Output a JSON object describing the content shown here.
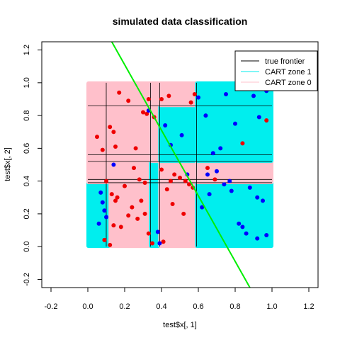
{
  "chart_data": {
    "type": "scatter",
    "title": "simulated data classification",
    "xlabel": "test$x[, 1]",
    "ylabel": "test$x[, 2]",
    "xlim": [
      -0.25,
      1.25
    ],
    "ylim": [
      -0.25,
      1.25
    ],
    "xticks": [
      "-0.2",
      "0.0",
      "0.2",
      "0.4",
      "0.6",
      "0.8",
      "1.0",
      "1.2"
    ],
    "yticks": [
      "-0.2",
      "0.0",
      "0.2",
      "0.4",
      "0.6",
      "0.8",
      "1.0",
      "1.2"
    ],
    "grid": false,
    "legend": {
      "position": "top-right",
      "entries": [
        {
          "label": "true frontier",
          "color": "#000000"
        },
        {
          "label": "CART zone 1",
          "color": "#00eeee"
        },
        {
          "label": "CART zone 0",
          "color": "#ffc0cb"
        }
      ]
    },
    "colors": {
      "zone1": "#00eeee",
      "zone0": "#ffc0cb",
      "class1_points": "#0000ff",
      "class0_points": "#ee0000",
      "frontier": "#00ee00",
      "split_lines": "#000000"
    },
    "zones": [
      {
        "x": [
          0.0,
          0.12
        ],
        "y": [
          0.0,
          0.39
        ],
        "zone": 1
      },
      {
        "x": [
          0.0,
          0.12
        ],
        "y": [
          0.39,
          1.0
        ],
        "zone": 0
      },
      {
        "x": [
          0.12,
          0.34
        ],
        "y": [
          0.0,
          1.0
        ],
        "zone": 0
      },
      {
        "x": [
          0.34,
          0.39
        ],
        "y": [
          0.0,
          0.52
        ],
        "zone": 1
      },
      {
        "x": [
          0.34,
          0.39
        ],
        "y": [
          0.52,
          1.0
        ],
        "zone": 0
      },
      {
        "x": [
          0.39,
          0.59
        ],
        "y": [
          0.0,
          0.39
        ],
        "zone": 0
      },
      {
        "x": [
          0.39,
          0.59
        ],
        "y": [
          0.39,
          0.52
        ],
        "zone": 0
      },
      {
        "x": [
          0.39,
          0.59
        ],
        "y": [
          0.52,
          0.56
        ],
        "zone": 1
      },
      {
        "x": [
          0.39,
          0.59
        ],
        "y": [
          0.56,
          0.86
        ],
        "zone": 1
      },
      {
        "x": [
          0.39,
          0.59
        ],
        "y": [
          0.86,
          1.0
        ],
        "zone": 0
      },
      {
        "x": [
          0.59,
          1.0
        ],
        "y": [
          0.0,
          0.39
        ],
        "zone": 1
      },
      {
        "x": [
          0.59,
          1.0
        ],
        "y": [
          0.39,
          0.52
        ],
        "zone": 0
      },
      {
        "x": [
          0.59,
          1.0
        ],
        "y": [
          0.52,
          1.0
        ],
        "zone": 1
      }
    ],
    "split_lines": [
      {
        "x": [
          0.0,
          1.0
        ],
        "y": [
          0.86,
          0.86
        ]
      },
      {
        "x": [
          0.0,
          1.0
        ],
        "y": [
          0.56,
          0.56
        ]
      },
      {
        "x": [
          0.0,
          1.0
        ],
        "y": [
          0.52,
          0.52
        ]
      },
      {
        "x": [
          0.0,
          1.0
        ],
        "y": [
          0.41,
          0.41
        ]
      },
      {
        "x": [
          0.0,
          1.0
        ],
        "y": [
          0.39,
          0.39
        ]
      },
      {
        "x": [
          0.1,
          0.1
        ],
        "y": [
          0.0,
          1.0
        ]
      },
      {
        "x": [
          0.34,
          0.34
        ],
        "y": [
          0.0,
          1.0
        ]
      },
      {
        "x": [
          0.39,
          0.39
        ],
        "y": [
          0.0,
          1.0
        ]
      },
      {
        "x": [
          0.59,
          0.59
        ],
        "y": [
          0.0,
          1.0
        ]
      }
    ],
    "frontier": {
      "x": [
        0.13,
        0.88
      ],
      "y": [
        1.25,
        -0.25
      ]
    },
    "series": [
      {
        "class": 0,
        "x": [
          0.05,
          0.08,
          0.12,
          0.14,
          0.17,
          0.22,
          0.26,
          0.3,
          0.32,
          0.33,
          0.36,
          0.15,
          0.1,
          0.25,
          0.28,
          0.31,
          0.2,
          0.13,
          0.16,
          0.24,
          0.29,
          0.33,
          0.35,
          0.14,
          0.09,
          0.18,
          0.22,
          0.27,
          0.31,
          0.12,
          0.15,
          0.4,
          0.43,
          0.45,
          0.47,
          0.5,
          0.53,
          0.55,
          0.57,
          0.41,
          0.46,
          0.52,
          0.4,
          0.44,
          0.56,
          0.58,
          0.65,
          0.69,
          0.84,
          0.97
        ],
        "y": [
          0.67,
          0.59,
          0.73,
          0.7,
          0.94,
          0.89,
          0.6,
          0.82,
          0.81,
          0.9,
          0.79,
          0.61,
          0.4,
          0.48,
          0.41,
          0.39,
          0.37,
          0.32,
          0.3,
          0.24,
          0.28,
          0.08,
          0.02,
          0.13,
          0.04,
          0.12,
          0.19,
          0.17,
          0.2,
          0.01,
          0.28,
          0.47,
          0.35,
          0.4,
          0.44,
          0.42,
          0.4,
          0.38,
          0.36,
          0.03,
          0.26,
          0.2,
          0.9,
          0.92,
          0.88,
          0.93,
          0.48,
          0.41,
          0.63,
          0.77
        ]
      },
      {
        "class": 1,
        "x": [
          0.07,
          0.08,
          0.09,
          0.1,
          0.06,
          0.14,
          0.33,
          0.38,
          0.42,
          0.45,
          0.51,
          0.54,
          0.6,
          0.64,
          0.68,
          0.72,
          0.75,
          0.8,
          0.85,
          0.9,
          0.93,
          0.97,
          0.66,
          0.74,
          0.78,
          0.88,
          0.92,
          0.95,
          0.62,
          0.82,
          0.84,
          0.86,
          0.92,
          0.97,
          0.65,
          0.7,
          0.77,
          0.39
        ],
        "y": [
          0.33,
          0.27,
          0.22,
          0.18,
          0.14,
          0.5,
          0.83,
          0.09,
          0.74,
          0.62,
          0.68,
          0.44,
          0.91,
          0.8,
          0.57,
          0.6,
          0.93,
          0.75,
          0.98,
          0.92,
          0.79,
          0.95,
          0.32,
          0.38,
          0.34,
          0.36,
          0.3,
          0.28,
          0.24,
          0.14,
          0.12,
          0.08,
          0.05,
          0.07,
          0.44,
          0.46,
          0.4,
          0.02
        ]
      }
    ]
  }
}
